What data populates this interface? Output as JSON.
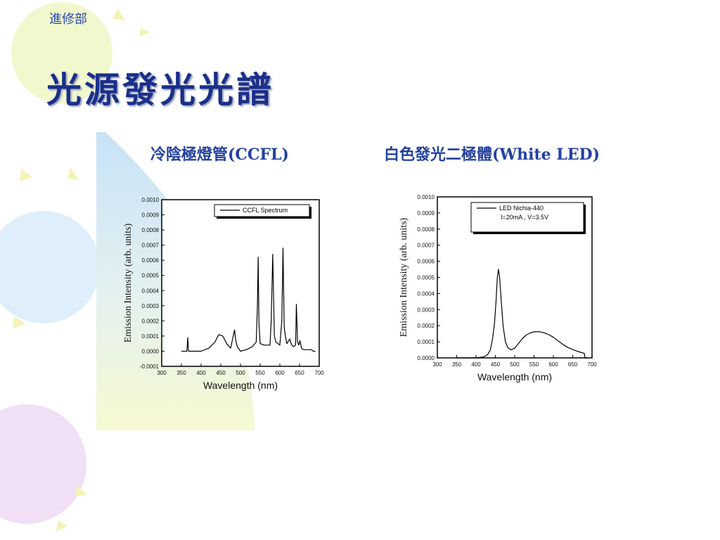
{
  "header": {
    "dept": "進修部"
  },
  "slide": {
    "title": "光源發光光譜"
  },
  "panels": {
    "ccfl_heading": "冷陰極燈管(CCFL)",
    "led_heading": "白色發光二極體(White LED)"
  },
  "chart_data": [
    {
      "type": "line",
      "title": "",
      "xlabel": "Wavelength (nm)",
      "ylabel": "Emission Intensity (arb. units)",
      "xlim": [
        300,
        700
      ],
      "ylim": [
        -0.0001,
        0.001
      ],
      "xticks": [
        "300",
        "350",
        "400",
        "450",
        "500",
        "550",
        "600",
        "650",
        "700"
      ],
      "yticks": [
        "-0.0001",
        "0.0000",
        "0.0001",
        "0.0002",
        "0.0003",
        "0.0004",
        "0.0005",
        "0.0006",
        "0.0007",
        "0.0008",
        "0.0009",
        "0.0010"
      ],
      "legend": {
        "position": "top-right",
        "entries": [
          "CCFL Spectrum"
        ]
      },
      "series": [
        {
          "name": "CCFL Spectrum",
          "x": [
            350,
            360,
            364,
            366,
            368,
            375,
            400,
            420,
            435,
            445,
            455,
            465,
            475,
            480,
            485,
            488,
            492,
            500,
            515,
            530,
            540,
            543,
            545,
            547,
            550,
            560,
            575,
            578,
            582,
            586,
            590,
            600,
            605,
            608,
            611,
            614,
            618,
            625,
            630,
            635,
            640,
            642,
            645,
            648,
            651,
            655,
            660,
            665,
            670,
            675,
            680,
            685,
            690
          ],
          "y": [
            0.0,
            0.0,
            0.0,
            9e-05,
            0.0,
            0.0,
            0.0,
            2e-05,
            6e-05,
            0.00011,
            0.0001,
            5e-05,
            2e-05,
            8e-05,
            0.00014,
            7e-05,
            3e-05,
            0.0,
            1e-05,
            3e-05,
            6e-05,
            0.0003,
            0.00062,
            0.00018,
            5e-05,
            4e-05,
            4e-05,
            0.0002,
            0.00064,
            0.0001,
            6e-05,
            4e-05,
            0.0002,
            0.00068,
            0.00016,
            0.0001,
            5e-05,
            8e-05,
            4e-05,
            3e-05,
            4e-05,
            0.00031,
            6e-05,
            4e-05,
            7e-05,
            2e-05,
            1e-05,
            1e-05,
            1e-05,
            1e-05,
            1e-05,
            0.0,
            0.0
          ]
        }
      ]
    },
    {
      "type": "line",
      "title": "",
      "xlabel": "Wavelength (nm)",
      "ylabel": "Emission Intensity (arb. units)",
      "xlim": [
        300,
        700
      ],
      "ylim": [
        0,
        0.001
      ],
      "xticks": [
        "300",
        "350",
        "400",
        "450",
        "500",
        "550",
        "600",
        "650",
        "700"
      ],
      "yticks": [
        "0.0000",
        "0.0001",
        "0.0002",
        "0.0003",
        "0.0004",
        "0.0005",
        "0.0006",
        "0.0007",
        "0.0008",
        "0.0009",
        "0.0010"
      ],
      "legend": {
        "position": "top-right",
        "entries": [
          "LED Nichia-440",
          "I=20mA , V=3.5V"
        ]
      },
      "series": [
        {
          "name": "LED Nichia-440",
          "x": [
            350,
            400,
            420,
            430,
            437,
            443,
            448,
            452,
            455,
            458,
            461,
            465,
            470,
            476,
            482,
            490,
            500,
            510,
            520,
            530,
            540,
            550,
            560,
            570,
            580,
            590,
            600,
            610,
            620,
            630,
            640,
            650,
            660,
            670,
            680,
            682,
            690
          ],
          "y": [
            0.0,
            0.0,
            6e-06,
            2e-05,
            5e-05,
            0.00012,
            0.00022,
            0.00036,
            0.0005,
            0.00055,
            0.0005,
            0.00036,
            0.0002,
            0.0001,
            6.5e-05,
            5e-05,
            6e-05,
            9e-05,
            0.00012,
            0.000142,
            0.000155,
            0.000162,
            0.000163,
            0.00016,
            0.000153,
            0.000142,
            0.000128,
            0.00011,
            9.2e-05,
            7.5e-05,
            6.2e-05,
            5.2e-05,
            4.3e-05,
            3.5e-05,
            2.8e-05,
            0.0,
            0.0
          ]
        }
      ]
    }
  ]
}
